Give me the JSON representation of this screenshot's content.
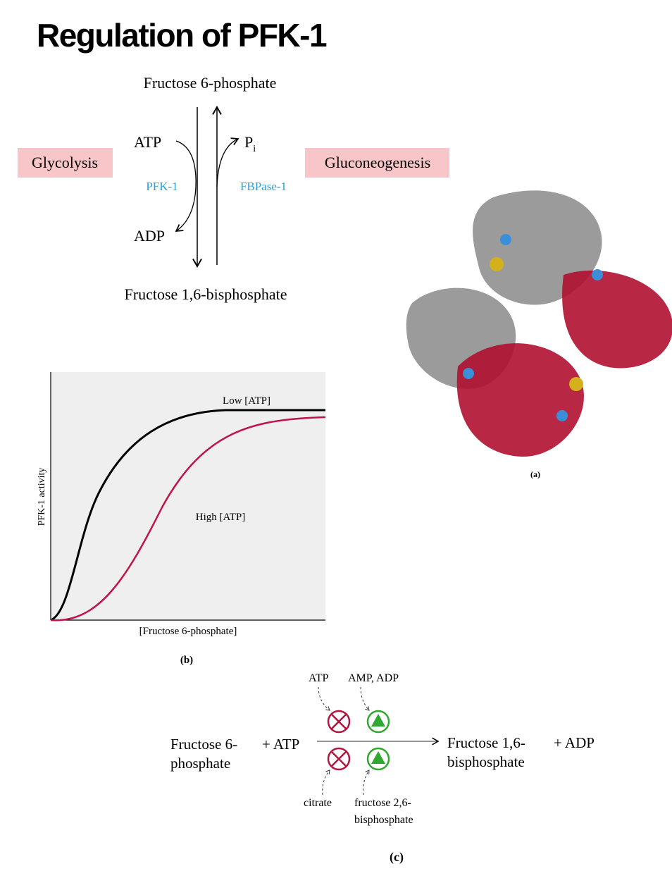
{
  "title": "Regulation of PFK-1",
  "pathway": {
    "top": "Fructose 6-phosphate",
    "bottom": "Fructose 1,6-bisphosphate",
    "left_label": "Glycolysis",
    "right_label": "Gluconeogenesis",
    "atp": "ATP",
    "adp": "ADP",
    "pi": "P",
    "pi_sub": "i",
    "enzyme_forward": "PFK-1",
    "enzyme_reverse": "FBPase-1"
  },
  "panel_a": {
    "label": "(a)"
  },
  "panel_b": {
    "y_label": "PFK-1 activity",
    "x_label": "[Fructose 6-phosphate]",
    "curves": [
      "Low [ATP]",
      "High [ATP]"
    ],
    "label": "(b)"
  },
  "panel_c": {
    "substrate": [
      "Fructose 6-",
      "phosphate"
    ],
    "cosubstrate": "+ ATP",
    "product": [
      "Fructose 1,6-",
      "bisphosphate"
    ],
    "coproduct": "+ ADP",
    "top_inhibitor": "ATP",
    "top_activator": "AMP, ADP",
    "bottom_inhibitor": "citrate",
    "bottom_activator": [
      "fructose 2,6-",
      "bisphosphate"
    ],
    "label": "(c)"
  }
}
